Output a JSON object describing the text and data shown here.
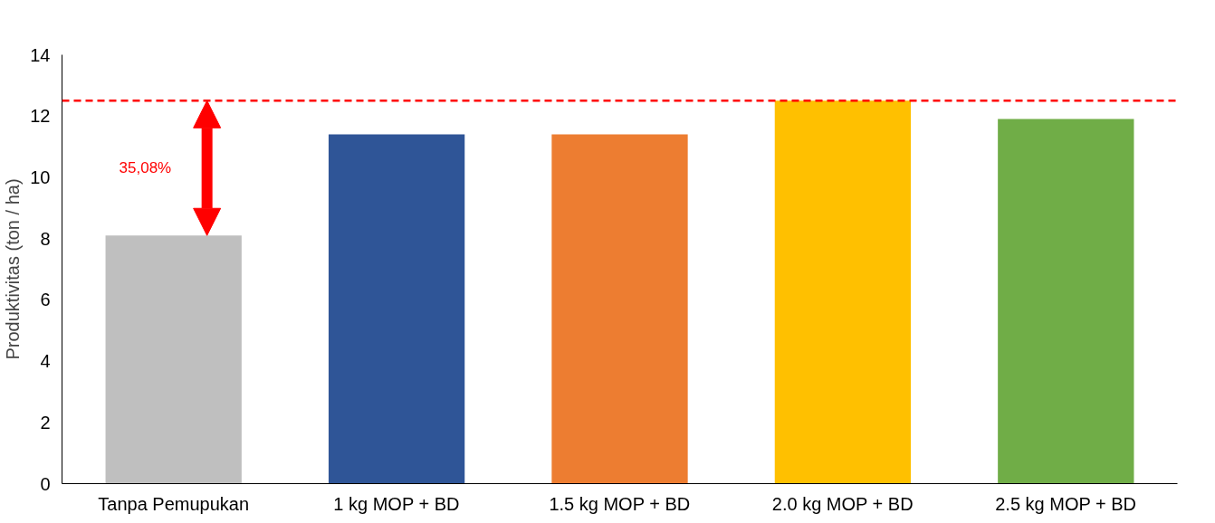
{
  "chart_data": {
    "type": "bar",
    "ylabel": "Produktivitas (ton / ha)",
    "categories": [
      "Tanpa Pemupukan",
      "1 kg MOP + BD",
      "1.5 kg MOP + BD",
      "2.0 kg MOP + BD",
      "2.5 kg MOP + BD"
    ],
    "values": [
      8.1,
      11.4,
      11.4,
      12.5,
      11.9
    ],
    "colors": [
      "#bfbfbf",
      "#2f5597",
      "#ed7d31",
      "#ffc000",
      "#70ad47"
    ],
    "ylim": [
      0,
      14
    ],
    "yticks": [
      0,
      2,
      4,
      6,
      8,
      10,
      12,
      14
    ],
    "grid": false,
    "ref_lines": [
      {
        "axis": "y",
        "value": 12.5,
        "color": "#ff0000",
        "line_style": "dashed"
      }
    ],
    "annotations": [
      "35,08%"
    ]
  }
}
